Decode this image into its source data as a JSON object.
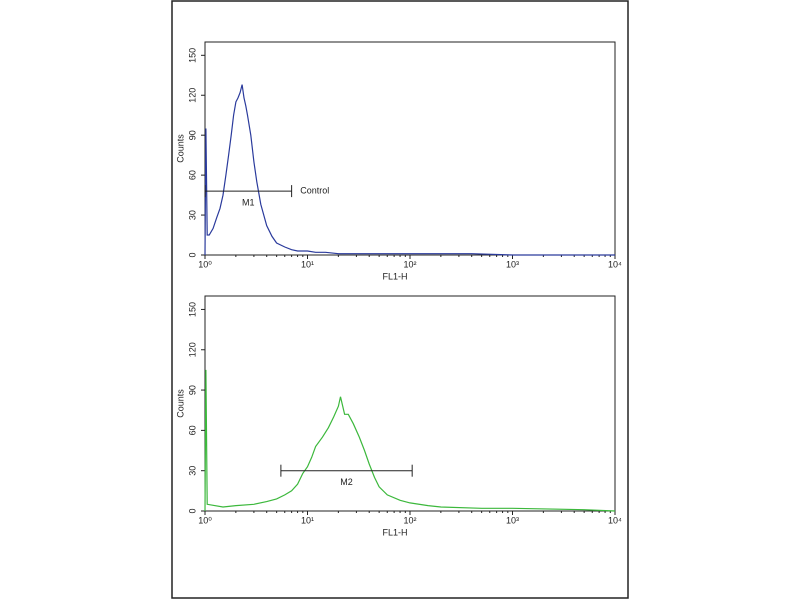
{
  "chart_data": [
    {
      "type": "line",
      "xlabel": "FL1-H",
      "ylabel": "Counts",
      "xscale": "log",
      "xlim": [
        1,
        10000
      ],
      "ylim": [
        0,
        160
      ],
      "xticks": [
        {
          "value": 1,
          "label": "10⁰"
        },
        {
          "value": 10,
          "label": "10¹"
        },
        {
          "value": 100,
          "label": "10²"
        },
        {
          "value": 1000,
          "label": "10³"
        },
        {
          "value": 10000,
          "label": "10⁴"
        }
      ],
      "yticks": [
        0,
        30,
        60,
        90,
        120,
        150
      ],
      "x": [
        1.0,
        1.02,
        1.05,
        1.1,
        1.2,
        1.3,
        1.4,
        1.5,
        1.6,
        1.7,
        1.8,
        1.9,
        2.0,
        2.1,
        2.2,
        2.3,
        2.4,
        2.5,
        2.6,
        2.8,
        3.0,
        3.2,
        3.5,
        4.0,
        4.5,
        5,
        6,
        7,
        8,
        10,
        12,
        15,
        20,
        30,
        50,
        100,
        200,
        400,
        1000,
        10000
      ],
      "series": [
        {
          "color": "#2a3a9c",
          "values": [
            0,
            95,
            15,
            15,
            20,
            28,
            35,
            45,
            60,
            75,
            90,
            105,
            115,
            118,
            122,
            128,
            118,
            112,
            105,
            90,
            70,
            55,
            38,
            22,
            14,
            9,
            6,
            4,
            3,
            3,
            2,
            2,
            1,
            1,
            1,
            1,
            1,
            1,
            0,
            0
          ]
        }
      ],
      "markers": [
        {
          "label": "M1",
          "range": [
            1,
            7
          ],
          "y": 48
        }
      ],
      "annotation": "Control",
      "annotation_x": 8.5
    },
    {
      "type": "line",
      "xlabel": "FL1-H",
      "ylabel": "Counts",
      "xscale": "log",
      "xlim": [
        1,
        10000
      ],
      "ylim": [
        0,
        160
      ],
      "xticks": [
        {
          "value": 1,
          "label": "10⁰"
        },
        {
          "value": 10,
          "label": "10¹"
        },
        {
          "value": 100,
          "label": "10²"
        },
        {
          "value": 1000,
          "label": "10³"
        },
        {
          "value": 10000,
          "label": "10⁴"
        }
      ],
      "yticks": [
        0,
        30,
        60,
        90,
        120,
        150
      ],
      "x": [
        1.0,
        1.02,
        1.05,
        1.5,
        2,
        3,
        4,
        5,
        6,
        7,
        8,
        9,
        10,
        11,
        12,
        14,
        16,
        18,
        20,
        21,
        23,
        25,
        28,
        32,
        36,
        40,
        45,
        50,
        60,
        80,
        100,
        150,
        200,
        500,
        1000,
        5000,
        10000
      ],
      "series": [
        {
          "color": "#3cb83c",
          "values": [
            0,
            105,
            5,
            3,
            4,
            5,
            7,
            9,
            12,
            15,
            20,
            28,
            33,
            40,
            48,
            55,
            62,
            70,
            78,
            85,
            72,
            72,
            65,
            55,
            45,
            35,
            25,
            18,
            12,
            8,
            6,
            4,
            3,
            2,
            2,
            1,
            0
          ]
        }
      ],
      "markers": [
        {
          "label": "M2",
          "range": [
            5.5,
            105
          ],
          "y": 30
        }
      ]
    }
  ]
}
